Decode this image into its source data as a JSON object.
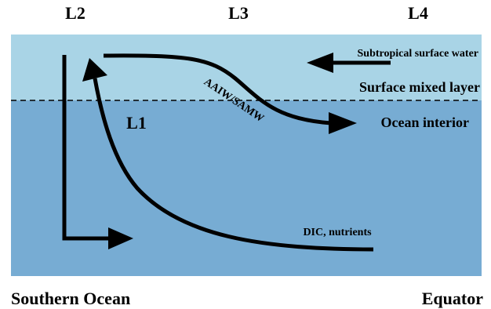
{
  "layer_labels": {
    "l2": "L2",
    "l3": "L3",
    "l4": "L4",
    "l1": "L1"
  },
  "water_labels": {
    "subtropical": "Subtropical surface water",
    "mixed_layer": "Surface mixed layer",
    "interior": "Ocean interior",
    "aaiw": "AAIW/SAMW",
    "dic": "DIC, nutrients"
  },
  "region_labels": {
    "left": "Southern Ocean",
    "right": "Equator"
  },
  "colors": {
    "surface_water": "#a9d4e6",
    "deep_water": "#77acd3",
    "arrows": "#000000"
  }
}
